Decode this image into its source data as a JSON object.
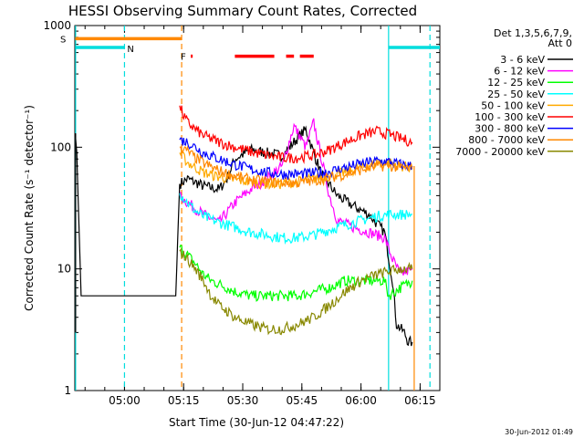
{
  "chart_data": {
    "type": "line",
    "title": "HESSI Observing Summary Count Rates, Corrected",
    "xlabel": "Start Time (30-Jun-12 04:47:22)",
    "ylabel": "Corrected Count Rate (s⁻¹ detector⁻¹)",
    "yscale": "log",
    "ylim": [
      1,
      1000
    ],
    "xlim_minutes": [
      47.4,
      140
    ],
    "x_ticks": [
      {
        "label": "05:00",
        "m": 60
      },
      {
        "label": "05:15",
        "m": 75
      },
      {
        "label": "05:30",
        "m": 90
      },
      {
        "label": "05:45",
        "m": 105
      },
      {
        "label": "06:00",
        "m": 120
      },
      {
        "label": "06:15",
        "m": 135
      }
    ],
    "y_ticks": [
      {
        "label": "1",
        "v": 1
      },
      {
        "label": "10",
        "v": 10
      },
      {
        "label": "100",
        "v": 100
      },
      {
        "label": "1000",
        "v": 1000
      }
    ],
    "legend": {
      "header": [
        "Det 1,3,5,6,7,9,",
        "Att 0"
      ],
      "position": "right"
    },
    "series": [
      {
        "name": "3 - 6 keV",
        "color": "#000000",
        "points": [
          [
            47.5,
            130
          ],
          [
            47.9,
            90
          ],
          [
            49,
            6
          ],
          [
            73,
            6
          ],
          [
            74,
            50
          ],
          [
            76,
            55
          ],
          [
            80,
            48
          ],
          [
            84,
            45
          ],
          [
            86,
            55
          ],
          [
            88,
            80
          ],
          [
            92,
            95
          ],
          [
            96,
            90
          ],
          [
            100,
            85
          ],
          [
            104,
            120
          ],
          [
            106,
            140
          ],
          [
            108,
            90
          ],
          [
            110,
            60
          ],
          [
            114,
            40
          ],
          [
            118,
            33
          ],
          [
            122,
            28
          ],
          [
            126,
            20
          ],
          [
            128,
            8
          ],
          [
            129,
            3.5
          ],
          [
            131,
            3
          ],
          [
            132,
            2.5
          ],
          [
            133,
            2.5
          ]
        ]
      },
      {
        "name": "6 - 12 keV",
        "color": "#ff00ff",
        "points": [
          [
            74,
            40
          ],
          [
            76,
            35
          ],
          [
            80,
            28
          ],
          [
            84,
            24
          ],
          [
            88,
            35
          ],
          [
            92,
            45
          ],
          [
            96,
            55
          ],
          [
            100,
            70
          ],
          [
            103,
            150
          ],
          [
            106,
            100
          ],
          [
            108,
            160
          ],
          [
            110,
            80
          ],
          [
            112,
            40
          ],
          [
            114,
            25
          ],
          [
            118,
            22
          ],
          [
            122,
            20
          ],
          [
            126,
            18
          ],
          [
            128,
            12
          ],
          [
            130,
            9
          ],
          [
            133,
            10
          ]
        ]
      },
      {
        "name": "12 - 25 keV",
        "color": "#00ff00",
        "points": [
          [
            74,
            15
          ],
          [
            76,
            13
          ],
          [
            78,
            11
          ],
          [
            80,
            9
          ],
          [
            82,
            8
          ],
          [
            84,
            7.5
          ],
          [
            86,
            7
          ],
          [
            88,
            6.5
          ],
          [
            92,
            6
          ],
          [
            96,
            6
          ],
          [
            100,
            6
          ],
          [
            104,
            6
          ],
          [
            108,
            6.5
          ],
          [
            112,
            7
          ],
          [
            116,
            8
          ],
          [
            120,
            8
          ],
          [
            124,
            8
          ],
          [
            126,
            8
          ],
          [
            127,
            6
          ],
          [
            130,
            7
          ],
          [
            133,
            8
          ]
        ]
      },
      {
        "name": "25 - 50 keV",
        "color": "#00ffff",
        "points": [
          [
            74,
            42
          ],
          [
            76,
            35
          ],
          [
            78,
            30
          ],
          [
            80,
            27
          ],
          [
            84,
            24
          ],
          [
            88,
            22
          ],
          [
            92,
            20
          ],
          [
            96,
            19
          ],
          [
            100,
            18
          ],
          [
            104,
            18
          ],
          [
            108,
            19
          ],
          [
            112,
            21
          ],
          [
            116,
            23
          ],
          [
            120,
            25
          ],
          [
            124,
            27
          ],
          [
            127,
            28
          ],
          [
            130,
            28
          ],
          [
            133,
            28
          ]
        ]
      },
      {
        "name": "50 - 100 keV",
        "color": "#ffaa00",
        "points": [
          [
            74,
            90
          ],
          [
            76,
            75
          ],
          [
            78,
            68
          ],
          [
            80,
            62
          ],
          [
            84,
            57
          ],
          [
            88,
            54
          ],
          [
            92,
            52
          ],
          [
            96,
            50
          ],
          [
            100,
            50
          ],
          [
            104,
            52
          ],
          [
            108,
            55
          ],
          [
            112,
            58
          ],
          [
            116,
            62
          ],
          [
            120,
            68
          ],
          [
            124,
            74
          ],
          [
            127,
            75
          ],
          [
            130,
            70
          ],
          [
            133,
            68
          ]
        ]
      },
      {
        "name": "100 - 300 keV",
        "color": "#ff0000",
        "points": [
          [
            74,
            220
          ],
          [
            75,
            180
          ],
          [
            76,
            160
          ],
          [
            78,
            140
          ],
          [
            80,
            125
          ],
          [
            84,
            110
          ],
          [
            88,
            100
          ],
          [
            92,
            92
          ],
          [
            96,
            86
          ],
          [
            100,
            82
          ],
          [
            104,
            82
          ],
          [
            108,
            86
          ],
          [
            112,
            95
          ],
          [
            116,
            110
          ],
          [
            120,
            125
          ],
          [
            124,
            135
          ],
          [
            127,
            128
          ],
          [
            130,
            118
          ],
          [
            133,
            110
          ]
        ]
      },
      {
        "name": "300 - 800 keV",
        "color": "#0000ff",
        "points": [
          [
            74,
            115
          ],
          [
            76,
            110
          ],
          [
            78,
            100
          ],
          [
            80,
            90
          ],
          [
            84,
            80
          ],
          [
            88,
            72
          ],
          [
            92,
            66
          ],
          [
            96,
            62
          ],
          [
            100,
            60
          ],
          [
            104,
            60
          ],
          [
            108,
            61
          ],
          [
            112,
            63
          ],
          [
            116,
            68
          ],
          [
            120,
            73
          ],
          [
            124,
            77
          ],
          [
            127,
            76
          ],
          [
            130,
            72
          ],
          [
            133,
            70
          ]
        ]
      },
      {
        "name": "800 - 7000 keV",
        "color": "#ff8800",
        "points": [
          [
            74,
            100
          ],
          [
            76,
            92
          ],
          [
            78,
            82
          ],
          [
            80,
            74
          ],
          [
            84,
            64
          ],
          [
            88,
            58
          ],
          [
            92,
            54
          ],
          [
            96,
            52
          ],
          [
            100,
            51
          ],
          [
            104,
            51
          ],
          [
            108,
            53
          ],
          [
            112,
            56
          ],
          [
            116,
            60
          ],
          [
            120,
            65
          ],
          [
            124,
            70
          ],
          [
            127,
            70
          ],
          [
            130,
            68
          ],
          [
            133,
            66
          ]
        ]
      },
      {
        "name": "7000 - 20000 keV",
        "color": "#888800",
        "points": [
          [
            74,
            14
          ],
          [
            76,
            12
          ],
          [
            78,
            10
          ],
          [
            80,
            8
          ],
          [
            82,
            6
          ],
          [
            84,
            5
          ],
          [
            86,
            4.5
          ],
          [
            88,
            4
          ],
          [
            92,
            3.5
          ],
          [
            96,
            3.2
          ],
          [
            100,
            3.2
          ],
          [
            104,
            3.5
          ],
          [
            108,
            4
          ],
          [
            112,
            5
          ],
          [
            116,
            6.5
          ],
          [
            120,
            8
          ],
          [
            124,
            9
          ],
          [
            127,
            9.5
          ],
          [
            130,
            10
          ],
          [
            133,
            10
          ]
        ]
      }
    ],
    "flags": [
      {
        "label": "S",
        "color": "#ff8800",
        "start": 47.5,
        "end": 74.5,
        "level": 780
      },
      {
        "label": "N",
        "color": "#00dddd",
        "start": 47.5,
        "end": 60,
        "level": 660
      },
      {
        "label": "N",
        "color": "#00dddd",
        "start": 127,
        "end": 140,
        "level": 660
      },
      {
        "label": "F",
        "color": "#ff0000",
        "segments": [
          [
            76.8,
            77.3
          ],
          [
            88,
            98
          ],
          [
            101,
            103
          ],
          [
            104.5,
            108
          ]
        ],
        "level": 560
      }
    ],
    "vertical_lines": [
      {
        "m": 47.6,
        "color": "#00dddd",
        "style": "solid"
      },
      {
        "m": 60,
        "color": "#00dddd",
        "style": "dashed"
      },
      {
        "m": 74.5,
        "color": "#ff8800",
        "style": "dashed"
      },
      {
        "m": 127,
        "color": "#00dddd",
        "style": "solid"
      },
      {
        "m": 137.5,
        "color": "#00dddd",
        "style": "dashed"
      }
    ]
  },
  "timestamp": "30-Jun-2012 01:49"
}
